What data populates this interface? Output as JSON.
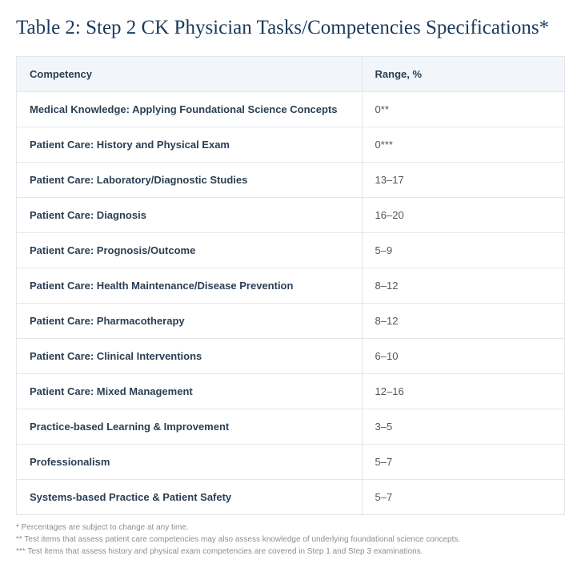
{
  "title": "Table 2: Step 2 CK Physician Tasks/Competencies Specifications*",
  "table": {
    "columns": [
      "Competency",
      "Range, %"
    ],
    "rows": [
      [
        "Medical Knowledge: Applying Foundational Science Concepts",
        "0**"
      ],
      [
        "Patient Care: History and Physical Exam",
        "0***"
      ],
      [
        "Patient Care: Laboratory/Diagnostic Studies",
        "13–17"
      ],
      [
        "Patient Care: Diagnosis",
        "16–20"
      ],
      [
        "Patient Care: Prognosis/Outcome",
        "5–9"
      ],
      [
        "Patient Care: Health Maintenance/Disease Prevention",
        "8–12"
      ],
      [
        "Patient Care: Pharmacotherapy",
        "8–12"
      ],
      [
        "Patient Care: Clinical Interventions",
        "6–10"
      ],
      [
        "Patient Care: Mixed Management",
        "12–16"
      ],
      [
        "Practice-based Learning & Improvement",
        "3–5"
      ],
      [
        "Professionalism",
        "5–7"
      ],
      [
        "Systems-based Practice & Patient Safety",
        "5–7"
      ]
    ]
  },
  "footnotes": [
    "* Percentages are subject to change at any time.",
    "** Test items that assess patient care competencies may also assess knowledge of underlying foundational science concepts.",
    "*** Test items that assess history and physical exam competencies are covered in Step 1 and Step 3 examinations."
  ],
  "colors": {
    "title_color": "#1a3a5c",
    "header_bg": "#f2f6fa",
    "header_text": "#2a3f54",
    "border": "#e3e7ea",
    "cell_text": "#2a3f54",
    "footnote_text": "#8a8f94"
  }
}
